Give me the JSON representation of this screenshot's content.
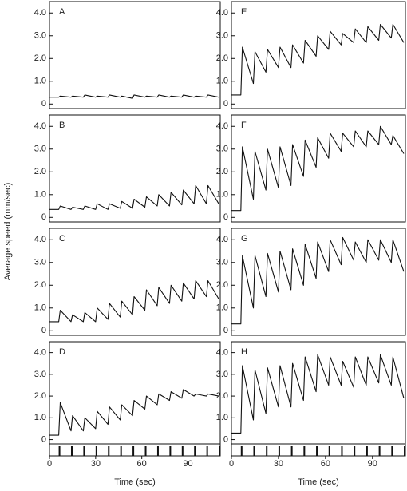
{
  "ylabel": "Average speed (mm/sec)",
  "chart_data": [
    {
      "type": "line",
      "label": "A",
      "xlim": [
        0,
        111
      ],
      "ylim": [
        -0.2,
        4.5
      ],
      "yticks": [
        0,
        {
          "value": 1,
          "label": "1.0"
        },
        {
          "value": 2,
          "label": "2.0"
        },
        {
          "value": 3,
          "label": "3.0"
        },
        {
          "value": 4,
          "label": "4.0"
        }
      ],
      "x": [
        0,
        6,
        7,
        14,
        15,
        22,
        23,
        30,
        31,
        38,
        39,
        46,
        47,
        54,
        55,
        62,
        63,
        70,
        71,
        78,
        79,
        86,
        87,
        94,
        95,
        102,
        103,
        110
      ],
      "values": [
        0.3,
        0.3,
        0.35,
        0.3,
        0.35,
        0.3,
        0.4,
        0.3,
        0.35,
        0.3,
        0.4,
        0.3,
        0.35,
        0.25,
        0.4,
        0.3,
        0.35,
        0.3,
        0.4,
        0.3,
        0.35,
        0.3,
        0.4,
        0.3,
        0.35,
        0.3,
        0.4,
        0.3
      ]
    },
    {
      "type": "line",
      "label": "B",
      "xlim": [
        0,
        111
      ],
      "ylim": [
        -0.2,
        4.5
      ],
      "yticks": [
        0,
        {
          "value": 1,
          "label": "1.0"
        },
        {
          "value": 2,
          "label": "2.0"
        },
        {
          "value": 3,
          "label": "3.0"
        },
        {
          "value": 4,
          "label": "4.0"
        }
      ],
      "x": [
        0,
        6,
        7,
        14,
        15,
        22,
        23,
        30,
        31,
        38,
        39,
        46,
        47,
        54,
        55,
        62,
        63,
        70,
        71,
        78,
        79,
        86,
        87,
        94,
        95,
        102,
        103,
        110
      ],
      "values": [
        0.35,
        0.35,
        0.5,
        0.35,
        0.45,
        0.35,
        0.5,
        0.35,
        0.6,
        0.35,
        0.6,
        0.4,
        0.7,
        0.4,
        0.8,
        0.45,
        0.9,
        0.5,
        1.0,
        0.5,
        1.1,
        0.55,
        1.2,
        0.6,
        1.4,
        0.6,
        1.4,
        0.6
      ]
    },
    {
      "type": "line",
      "label": "C",
      "xlim": [
        0,
        111
      ],
      "ylim": [
        -0.2,
        4.5
      ],
      "yticks": [
        0,
        {
          "value": 1,
          "label": "1.0"
        },
        {
          "value": 2,
          "label": "2.0"
        },
        {
          "value": 3,
          "label": "3.0"
        },
        {
          "value": 4,
          "label": "4.0"
        }
      ],
      "x": [
        0,
        6,
        7,
        14,
        15,
        22,
        23,
        30,
        31,
        38,
        39,
        46,
        47,
        54,
        55,
        62,
        63,
        70,
        71,
        78,
        79,
        86,
        87,
        94,
        95,
        102,
        103,
        110
      ],
      "values": [
        0.4,
        0.4,
        0.9,
        0.4,
        0.7,
        0.4,
        0.8,
        0.4,
        1.0,
        0.5,
        1.2,
        0.6,
        1.3,
        0.7,
        1.5,
        0.9,
        1.8,
        1.1,
        1.9,
        1.2,
        2.0,
        1.3,
        2.1,
        1.4,
        2.2,
        1.5,
        2.2,
        1.4
      ]
    },
    {
      "type": "line",
      "label": "D",
      "xlim": [
        0,
        111
      ],
      "ylim": [
        -0.2,
        4.5
      ],
      "yticks": [
        0,
        {
          "value": 1,
          "label": "1.0"
        },
        {
          "value": 2,
          "label": "2.0"
        },
        {
          "value": 3,
          "label": "3.0"
        },
        {
          "value": 4,
          "label": "4.0"
        }
      ],
      "xticks": [
        0,
        30,
        60,
        90
      ],
      "xlabel": "Time (sec)",
      "x": [
        0,
        6,
        7,
        14,
        15,
        22,
        23,
        30,
        31,
        38,
        39,
        46,
        47,
        54,
        55,
        62,
        63,
        70,
        71,
        78,
        79,
        86,
        87,
        94,
        95,
        102,
        103,
        110
      ],
      "values": [
        0.2,
        0.2,
        1.7,
        0.4,
        1.1,
        0.4,
        1.0,
        0.5,
        1.3,
        0.7,
        1.5,
        0.9,
        1.6,
        1.1,
        1.8,
        1.4,
        2.0,
        1.6,
        2.1,
        1.8,
        2.2,
        1.9,
        2.3,
        2.0,
        2.1,
        2.0,
        2.1,
        2.0
      ]
    },
    {
      "type": "line",
      "label": "E",
      "xlim": [
        0,
        111
      ],
      "ylim": [
        -0.2,
        4.5
      ],
      "yticks": [
        0,
        {
          "value": 1,
          "label": "1.0"
        },
        {
          "value": 2,
          "label": "2.0"
        },
        {
          "value": 3,
          "label": "3.0"
        },
        {
          "value": 4,
          "label": "4.0"
        }
      ],
      "x": [
        0,
        6,
        7,
        14,
        15,
        22,
        23,
        30,
        31,
        38,
        39,
        46,
        47,
        54,
        55,
        62,
        63,
        70,
        71,
        78,
        79,
        86,
        87,
        94,
        95,
        102,
        103,
        110
      ],
      "values": [
        0.4,
        0.4,
        2.5,
        0.9,
        2.3,
        1.4,
        2.4,
        1.6,
        2.5,
        1.6,
        2.6,
        1.8,
        2.8,
        2.1,
        3.0,
        2.4,
        3.2,
        2.6,
        3.1,
        2.7,
        3.3,
        2.7,
        3.4,
        2.8,
        3.5,
        2.9,
        3.5,
        2.7
      ]
    },
    {
      "type": "line",
      "label": "F",
      "xlim": [
        0,
        111
      ],
      "ylim": [
        -0.2,
        4.5
      ],
      "yticks": [
        0,
        {
          "value": 1,
          "label": "1.0"
        },
        {
          "value": 2,
          "label": "2.0"
        },
        {
          "value": 3,
          "label": "3.0"
        },
        {
          "value": 4,
          "label": "4.0"
        }
      ],
      "x": [
        0,
        6,
        7,
        14,
        15,
        22,
        23,
        30,
        31,
        38,
        39,
        46,
        47,
        54,
        55,
        62,
        63,
        70,
        71,
        78,
        79,
        86,
        87,
        94,
        95,
        102,
        103,
        110
      ],
      "values": [
        0.3,
        0.3,
        3.1,
        0.8,
        2.9,
        1.2,
        3.0,
        1.3,
        3.1,
        1.4,
        3.2,
        1.8,
        3.4,
        2.2,
        3.5,
        2.6,
        3.7,
        2.9,
        3.7,
        3.1,
        3.8,
        3.1,
        3.8,
        3.2,
        4.0,
        3.2,
        3.6,
        2.8
      ]
    },
    {
      "type": "line",
      "label": "G",
      "xlim": [
        0,
        111
      ],
      "ylim": [
        -0.2,
        4.5
      ],
      "yticks": [
        0,
        {
          "value": 1,
          "label": "1.0"
        },
        {
          "value": 2,
          "label": "2.0"
        },
        {
          "value": 3,
          "label": "3.0"
        },
        {
          "value": 4,
          "label": "4.0"
        }
      ],
      "x": [
        0,
        6,
        7,
        14,
        15,
        22,
        23,
        30,
        31,
        38,
        39,
        46,
        47,
        54,
        55,
        62,
        63,
        70,
        71,
        78,
        79,
        86,
        87,
        94,
        95,
        102,
        103,
        110
      ],
      "values": [
        0.3,
        0.3,
        3.3,
        1.0,
        3.3,
        1.5,
        3.4,
        1.7,
        3.5,
        1.8,
        3.6,
        2.0,
        3.8,
        2.3,
        3.9,
        2.6,
        4.0,
        2.9,
        4.1,
        3.1,
        3.9,
        3.0,
        4.0,
        3.1,
        4.0,
        3.0,
        4.0,
        2.6
      ]
    },
    {
      "type": "line",
      "label": "H",
      "xlim": [
        0,
        111
      ],
      "ylim": [
        -0.2,
        4.5
      ],
      "yticks": [
        0,
        {
          "value": 1,
          "label": "1.0"
        },
        {
          "value": 2,
          "label": "2.0"
        },
        {
          "value": 3,
          "label": "3.0"
        },
        {
          "value": 4,
          "label": "4.0"
        }
      ],
      "xticks": [
        0,
        30,
        60,
        90
      ],
      "xlabel": "Time (sec)",
      "x": [
        0,
        6,
        7,
        14,
        15,
        22,
        23,
        30,
        31,
        38,
        39,
        46,
        47,
        54,
        55,
        62,
        63,
        70,
        71,
        78,
        79,
        86,
        87,
        94,
        95,
        102,
        103,
        110
      ],
      "values": [
        0.3,
        0.3,
        3.4,
        0.9,
        3.2,
        1.2,
        3.3,
        1.5,
        3.4,
        1.5,
        3.5,
        1.8,
        3.8,
        2.2,
        3.9,
        2.5,
        3.8,
        2.5,
        3.6,
        2.4,
        3.8,
        2.5,
        3.8,
        2.6,
        3.9,
        2.5,
        3.8,
        1.9
      ]
    }
  ]
}
